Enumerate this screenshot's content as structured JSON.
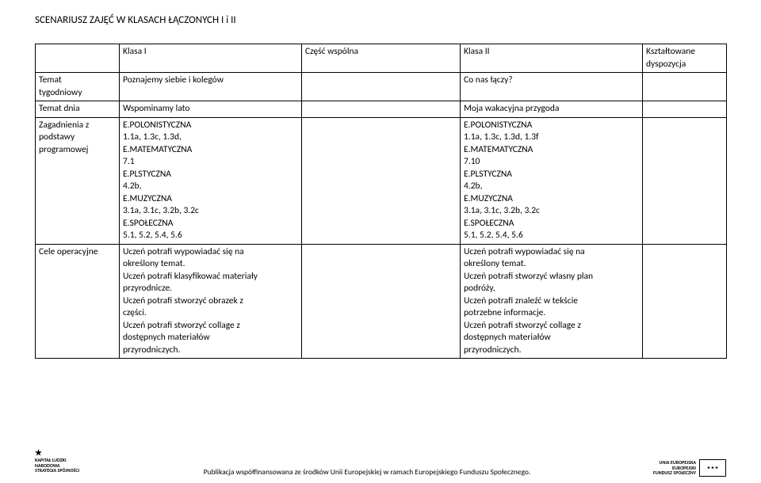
{
  "title": "SCENARIUSZ ZAJĘĆ W KLASACH ŁĄCZONYCH I i II",
  "table": {
    "row1": {
      "c1": "",
      "c2": "Klasa I",
      "c3": "Część wspólna",
      "c4": "Klasa II",
      "c5": "Kształtowane\ndyspozycja"
    },
    "row2": {
      "c1": "Temat\ntygodniowy",
      "c2": "Poznajemy siebie i kolegów",
      "c3": "",
      "c4": "Co nas łączy?",
      "c5": ""
    },
    "row3": {
      "c1": "Temat dnia",
      "c2": "Wspominamy lato",
      "c3": "",
      "c4": "Moja wakacyjna przygoda",
      "c5": ""
    },
    "row4": {
      "c1": "Zagadnienia z\npodstawy\nprogramowej",
      "c2": "E.POLONISTYCZNA\n1.1a, 1.3c, 1.3d,\nE.MATEMATYCZNA\n7.1\nE.PLSTYCZNA\n4.2b,\nE.MUZYCZNA\n3.1a, 3.1c, 3.2b, 3.2c\nE.SPOŁECZNA\n5.1, 5.2, 5.4, 5.6",
      "c3": "",
      "c4": "E.POLONISTYCZNA\n1.1a, 1.3c, 1.3d, 1.3f\nE.MATEMATYCZNA\n7.10\nE.PLSTYCZNA\n4.2b,\nE.MUZYCZNA\n3.1a, 3.1c, 3.2b, 3.2c\nE.SPOŁECZNA\n5.1, 5.2, 5.4, 5.6",
      "c5": ""
    },
    "row5": {
      "c1": "Cele operacyjne",
      "c2": "Uczeń potrafi wypowiadać się na\nokreślony temat.\nUczeń potrafi klasyfikować materiały\nprzyrodnicze.\nUczeń potrafi stworzyć obrazek z\nczęści.\nUczeń potrafi stworzyć collage z\ndostępnych materiałów\nprzyrodniczych.",
      "c3": "",
      "c4": "Uczeń potrafi wypowiadać się na\nokreślony temat.\nUczeń potrafi stworzyć własny plan\npodróży,\nUczeń potrafi znaleźć w tekście\npotrzebne informacje.\nUczeń potrafi stworzyć collage z\ndostępnych materiałów\nprzyrodniczych.",
      "c5": ""
    }
  },
  "footer": {
    "kl": {
      "line1": "KAPITAŁ LUDZKI",
      "line2": "NARODOWA STRATEGIA SPÓJNOŚCI"
    },
    "center": "Publikacja współfinansowana ze środków Unii Europejskiej w ramach Europejskiego Funduszu Społecznego.",
    "eu": {
      "line1": "UNIA EUROPEJSKA",
      "line2": "EUROPEJSKI",
      "line3": "FUNDUSZ SPOŁECZNY"
    }
  }
}
